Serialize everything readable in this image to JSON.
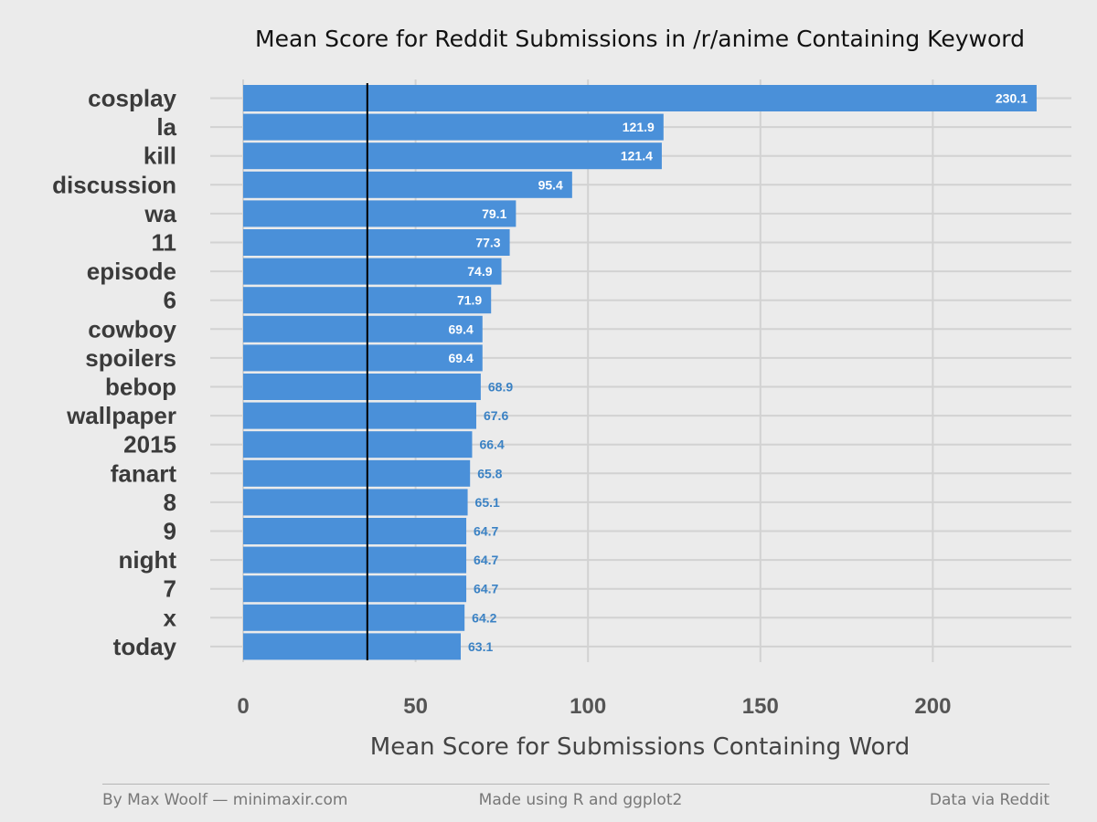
{
  "chart_data": {
    "type": "bar",
    "orientation": "horizontal",
    "title": "Mean Score for Reddit Submissions in /r/anime Containing Keyword",
    "xlabel": "Mean Score for Submissions Containing Word",
    "ylabel": "",
    "categories": [
      "cosplay",
      "la",
      "kill",
      "discussion",
      "wa",
      "11",
      "episode",
      "6",
      "cowboy",
      "spoilers",
      "bebop",
      "wallpaper",
      "2015",
      "fanart",
      "8",
      "9",
      "night",
      "7",
      "x",
      "today"
    ],
    "values": [
      230.1,
      121.9,
      121.4,
      95.4,
      79.1,
      77.3,
      74.9,
      71.9,
      69.4,
      69.4,
      68.9,
      67.6,
      66.4,
      65.8,
      65.1,
      64.7,
      64.7,
      64.7,
      64.2,
      63.1
    ],
    "value_labels": [
      "230.1",
      "121.9",
      "121.4",
      "95.4",
      "79.1",
      "77.3",
      "74.9",
      "71.9",
      "69.4",
      "69.4",
      "68.9",
      "67.6",
      "66.4",
      "65.8",
      "65.1",
      "64.7",
      "64.7",
      "64.7",
      "64.2",
      "63.1"
    ],
    "xlim": [
      0,
      240
    ],
    "x_ticks": [
      0,
      50,
      100,
      150,
      200
    ],
    "x_tick_labels": [
      "0",
      "50",
      "100",
      "150",
      "200"
    ],
    "reference_line": 36,
    "bar_color": "#4a90d9",
    "grid": true
  },
  "footer": {
    "left": "By Max Woolf — minimaxir.com",
    "center": "Made using R and ggplot2",
    "right": "Data via Reddit"
  }
}
